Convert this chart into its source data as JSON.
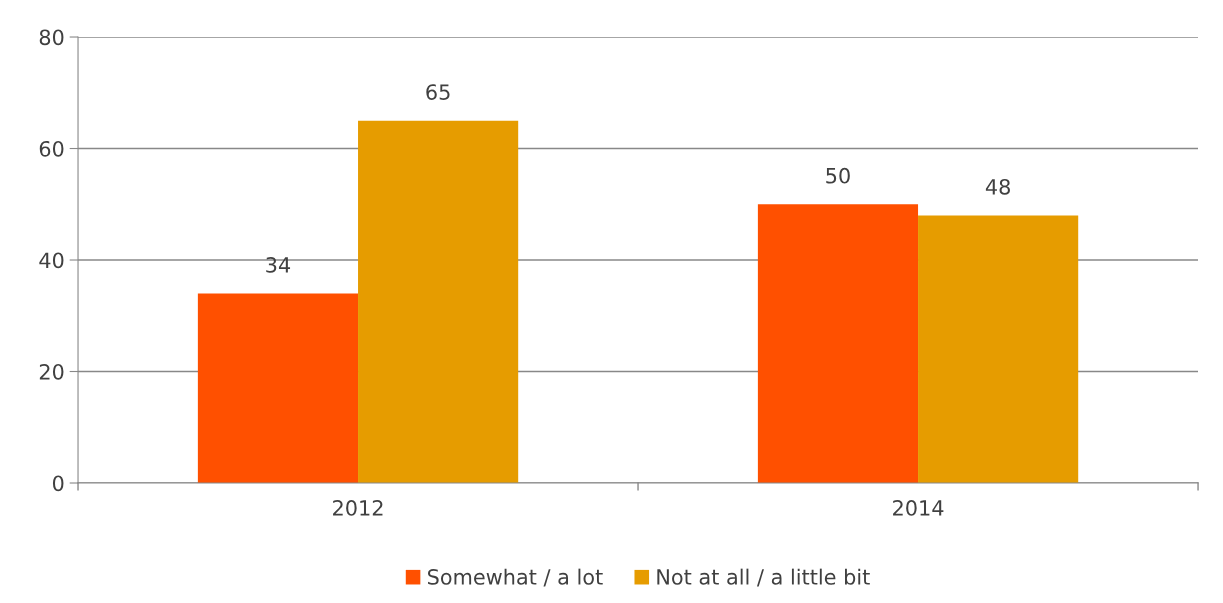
{
  "chart_data": {
    "type": "bar",
    "categories": [
      "2012",
      "2014"
    ],
    "series": [
      {
        "name": "Somewhat / a lot",
        "color": "#ff5000",
        "values": [
          34,
          50
        ]
      },
      {
        "name": "Not at all / a little bit",
        "color": "#e69c00",
        "values": [
          65,
          48
        ]
      }
    ],
    "ylim": [
      0,
      80
    ],
    "yticks": [
      0,
      20,
      40,
      60,
      80
    ],
    "grid": "y",
    "legend": "bottom",
    "data_labels": true
  }
}
